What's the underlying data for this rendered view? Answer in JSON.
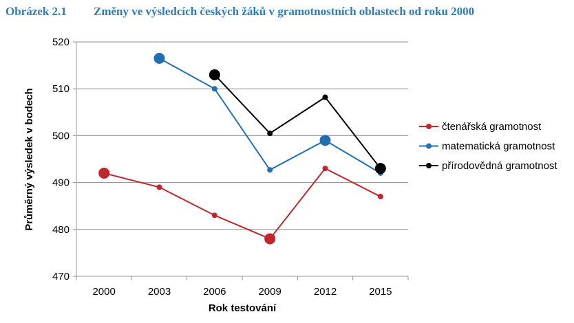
{
  "figure": {
    "number": "Obrázek 2.1",
    "title": "Změny ve výsledcích českých žáků v gramotnostních oblastech od roku 2000"
  },
  "chart_data": {
    "type": "line",
    "title": "Změny ve výsledcích českých žáků v gramotnostních oblastech od roku 2000",
    "xlabel": "Rok testování",
    "ylabel": "Průměrný výsledek v bodech",
    "categories": [
      "2000",
      "2003",
      "2006",
      "2009",
      "2012",
      "2015"
    ],
    "ylim": [
      470,
      520
    ],
    "yticks": [
      470,
      480,
      490,
      500,
      510,
      520
    ],
    "grid": true,
    "legend_position": "right",
    "series": [
      {
        "name": "čtenářská gramotnost",
        "color": "#c0272d",
        "values": [
          492,
          489,
          483,
          478,
          493,
          487
        ],
        "highlighted": [
          true,
          false,
          false,
          true,
          false,
          false
        ]
      },
      {
        "name": "matematická gramotnost",
        "color": "#1f6fb2",
        "values": [
          null,
          516.5,
          510,
          492.7,
          499,
          492
        ],
        "highlighted": [
          false,
          true,
          false,
          false,
          true,
          false
        ]
      },
      {
        "name": "přírodovědná gramotnost",
        "color": "#000000",
        "values": [
          null,
          null,
          513,
          500.5,
          508.2,
          493
        ],
        "highlighted": [
          false,
          false,
          true,
          false,
          false,
          true
        ]
      }
    ]
  }
}
